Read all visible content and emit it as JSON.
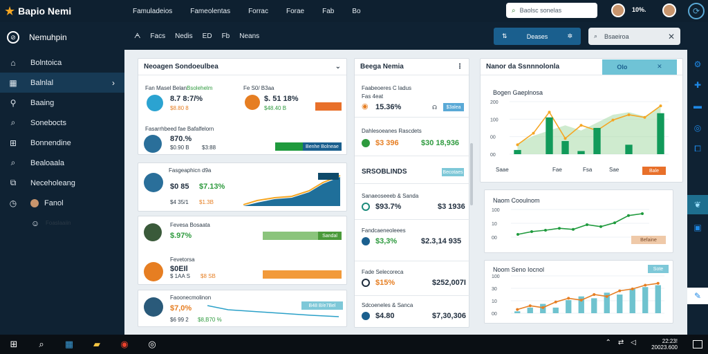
{
  "app": {
    "title": "Bapio Nemi"
  },
  "topnav": [
    "Famuladeios",
    "Fameolentas",
    "Forrac",
    "Forae",
    "Fab",
    "Bo"
  ],
  "topbar": {
    "search_placeholder": "Baolsc sonelas",
    "stat": "10%."
  },
  "sidebar": {
    "header": "Nemuhpin",
    "items": [
      {
        "label": "Bolntoica",
        "icon": "home-icon"
      },
      {
        "label": "Balnlal",
        "icon": "calendar-icon",
        "active": true
      },
      {
        "label": "Baaing",
        "icon": "key-icon"
      },
      {
        "label": "Sonebocts",
        "icon": "search-icon"
      },
      {
        "label": "Bonnendine",
        "icon": "grid-icon"
      },
      {
        "label": "Bealoaala",
        "icon": "search-icon"
      },
      {
        "label": "Neceholeang",
        "icon": "layers-icon"
      },
      {
        "label": "Fanol",
        "icon": "clock-icon"
      },
      {
        "label": "Foaslaaiin",
        "icon": "user-icon"
      }
    ]
  },
  "toolbar": {
    "links": [
      "ᗅ",
      "Facs",
      "Nedis",
      "ED",
      "Fb",
      "Neans"
    ],
    "button_label": "Deases",
    "search_placeholder": "Bsaeiroa"
  },
  "panel_left": {
    "title": "Neoagen Sondoeulbea",
    "cards": [
      {
        "label_a": "Fan Masel Belan",
        "tag_a": "Bsolehelm",
        "value_a": "8.7 8:7/%",
        "sub_a": "$8.80 8",
        "label_b": "Fe S0/ B3aa",
        "value_b": "$. 51 18%",
        "sub_b": "$48.40 B"
      },
      {
        "label": "Fasarrhbeed fae Bafalfelorn",
        "value": "870.%",
        "sub": "$0.90 B",
        "sub2": "$3:88",
        "tag": "Benhe Bolneae"
      },
      {
        "label": "Fasgeaphicn d9a",
        "value": "$0 85",
        "value2": "$7.13%",
        "sub": "$4 35/1",
        "sub2": "$1.3B"
      },
      {
        "label": "Fevesa Bosaata",
        "value": "$.97%",
        "tag": "Sandal"
      },
      {
        "label": "Fevetorsa",
        "value": "$0EIl",
        "sub": "$ 1AA S",
        "sub2": "$8 SB"
      },
      {
        "label": "Faoonecmolinon",
        "value": "$7,0%",
        "value2": "$8,B70 %",
        "sub": "$6 99 2",
        "tag": "B48 B/e7Bel"
      }
    ]
  },
  "panel_mid": {
    "title": "Beega Nemia",
    "cards": [
      {
        "label": "Faabeoeres C ladus",
        "sub": "Fas 4eat",
        "value": "15.36%",
        "tag": "$3alea"
      },
      {
        "label": "Dahlesoeanes Rascdets",
        "value": "$3 396",
        "value2": "$30 18,936"
      },
      {
        "label": "SRSOBLINDS",
        "tag": "Becotaes"
      },
      {
        "label": "Sanaeoseeeb & Sanda",
        "value": "$93.7%",
        "value2": "$3 1936"
      },
      {
        "label": "Fandcaeneoleees",
        "value": "$3,3%",
        "value2": "$2.3,14 935"
      },
      {
        "label": "Fade Selecoreca",
        "value": "$15%",
        "value2": "$252,007I"
      },
      {
        "label": "Sdcoeneles & Sanca",
        "value": "$4.80",
        "value2": "$7,30,306"
      }
    ]
  },
  "panel_right": {
    "title": "Nanor da Ssnnnolonla",
    "header_btn": "Olo",
    "charts": [
      {
        "title": "Bogen Gaeplnosa",
        "legend": [
          "Saae",
          "Fae",
          "Fsa",
          "Sae"
        ],
        "tag": "Bale",
        "chart_data": {
          "type": "bar",
          "x": [
            1,
            2,
            3,
            4,
            5,
            6,
            7,
            8,
            9,
            10
          ],
          "series": [
            {
              "type": "area",
              "values": [
                20,
                35,
                45,
                55,
                45,
                60,
                75,
                80,
                72,
                90
              ]
            },
            {
              "type": "line",
              "values": [
                18,
                40,
                80,
                30,
                55,
                45,
                65,
                75,
                70,
                92
              ]
            },
            {
              "type": "bar",
              "values": [
                8,
                0,
                70,
                25,
                6,
                50,
                0,
                18,
                0,
                78
              ]
            }
          ],
          "yticks": [
            "200",
            "100",
            "00",
            "00"
          ],
          "ylim": [
            0,
            100
          ]
        }
      },
      {
        "title": "Naom Cooulnom",
        "tag": "Befaine",
        "chart_data": {
          "type": "line",
          "x": [
            1,
            2,
            3,
            4,
            5,
            6,
            7,
            8,
            9,
            10
          ],
          "series": [
            {
              "values": [
                10,
                20,
                25,
                32,
                28,
                45,
                38,
                52,
                78,
                85
              ]
            }
          ],
          "yticks": [
            "100",
            "10",
            "00"
          ],
          "ylim": [
            0,
            100
          ]
        }
      },
      {
        "title": "Noom Seno Iocnol",
        "tag": "Sote",
        "chart_data": {
          "type": "bar",
          "x": [
            1,
            2,
            3,
            4,
            5,
            6,
            7,
            8,
            9,
            10,
            11,
            12
          ],
          "series": [
            {
              "type": "bar",
              "values": [
                5,
                15,
                25,
                15,
                35,
                45,
                40,
                55,
                50,
                65,
                70,
                75
              ]
            },
            {
              "type": "line",
              "values": [
                10,
                20,
                15,
                30,
                40,
                35,
                50,
                45,
                60,
                65,
                75,
                80
              ]
            }
          ],
          "yticks": [
            "100",
            "30",
            "10",
            "00"
          ],
          "ylim": [
            0,
            100
          ]
        }
      }
    ]
  },
  "taskbar": {
    "clock_time": "22:23!",
    "clock_date": "20023.600"
  }
}
